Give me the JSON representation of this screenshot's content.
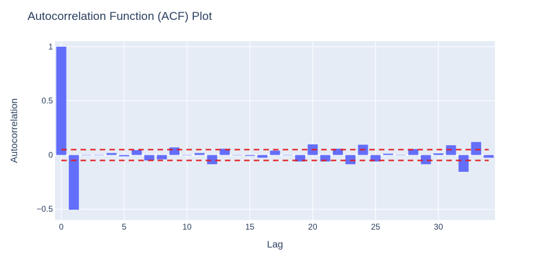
{
  "chart_data": {
    "type": "bar",
    "title": "Autocorrelation Function (ACF) Plot",
    "xlabel": "Lag",
    "ylabel": "Autocorrelation",
    "xlim": [
      -0.5,
      34.5
    ],
    "ylim": [
      -0.6,
      1.05
    ],
    "x_ticks": [
      0,
      5,
      10,
      15,
      20,
      25,
      30
    ],
    "y_ticks": [
      -0.5,
      0,
      0.5,
      1
    ],
    "y_tick_labels": [
      "−0.5",
      "0",
      "0.5",
      "1"
    ],
    "grid": true,
    "lags": [
      0,
      1,
      2,
      3,
      4,
      5,
      6,
      7,
      8,
      9,
      10,
      11,
      12,
      13,
      14,
      15,
      16,
      17,
      18,
      19,
      20,
      21,
      22,
      23,
      24,
      25,
      26,
      27,
      28,
      29,
      30,
      31,
      32,
      33,
      34
    ],
    "values": [
      1.0,
      -0.505,
      0.0,
      0.0,
      0.018,
      -0.012,
      0.045,
      -0.05,
      -0.04,
      0.07,
      0.0,
      0.018,
      -0.085,
      0.058,
      0.0,
      -0.008,
      -0.025,
      0.04,
      0.0,
      -0.06,
      0.098,
      -0.06,
      0.058,
      -0.085,
      0.095,
      -0.06,
      0.012,
      0.0,
      0.055,
      -0.085,
      0.015,
      0.09,
      -0.155,
      0.12,
      -0.025
    ],
    "confidence_bounds": [
      0.05,
      -0.05
    ],
    "colors": {
      "bar": "#636efa",
      "confidence": "#e31a1c",
      "plot_background": "#e5ecf6",
      "grid": "#ffffff"
    }
  }
}
